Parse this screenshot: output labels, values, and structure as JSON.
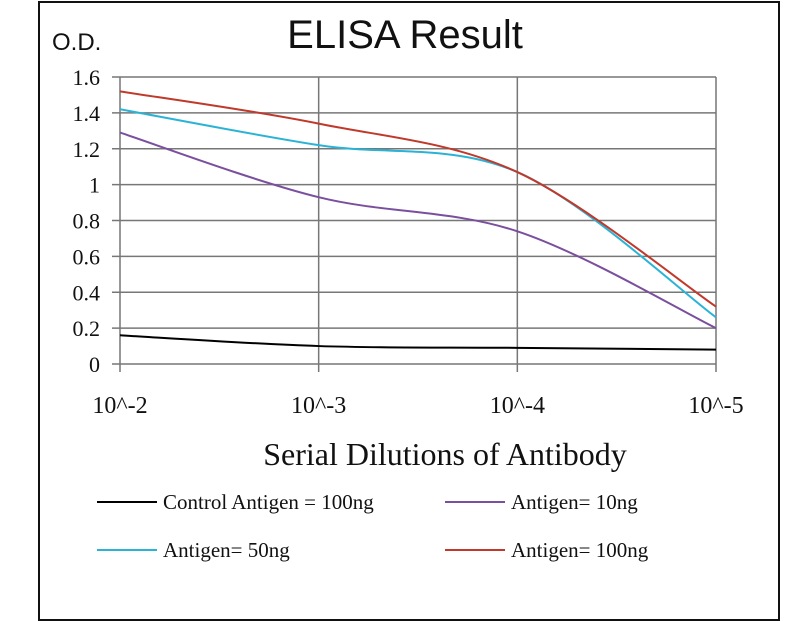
{
  "chart_data": {
    "type": "line",
    "title": "ELISA Result",
    "ylabel": "O.D.",
    "xlabel": "Serial Dilutions  of Antibody",
    "categories": [
      "10^-2",
      "10^-3",
      "10^-4",
      "10^-5"
    ],
    "ylim": [
      0,
      1.6
    ],
    "yticks": [
      "0",
      "0.2",
      "0.4",
      "0.6",
      "0.8",
      "1",
      "1.2",
      "1.4",
      "1.6"
    ],
    "grid": true,
    "legend_position": "bottom",
    "series": [
      {
        "name": "Control Antigen = 100ng",
        "color": "#000000",
        "values": [
          0.16,
          0.1,
          0.09,
          0.08
        ]
      },
      {
        "name": "Antigen= 10ng",
        "color": "#7a4f9e",
        "values": [
          1.29,
          0.93,
          0.74,
          0.2
        ]
      },
      {
        "name": "Antigen= 50ng",
        "color": "#2bb3d6",
        "values": [
          1.42,
          1.22,
          1.07,
          0.26
        ]
      },
      {
        "name": "Antigen= 100ng",
        "color": "#c0392b",
        "values": [
          1.52,
          1.34,
          1.07,
          0.32
        ]
      }
    ]
  }
}
